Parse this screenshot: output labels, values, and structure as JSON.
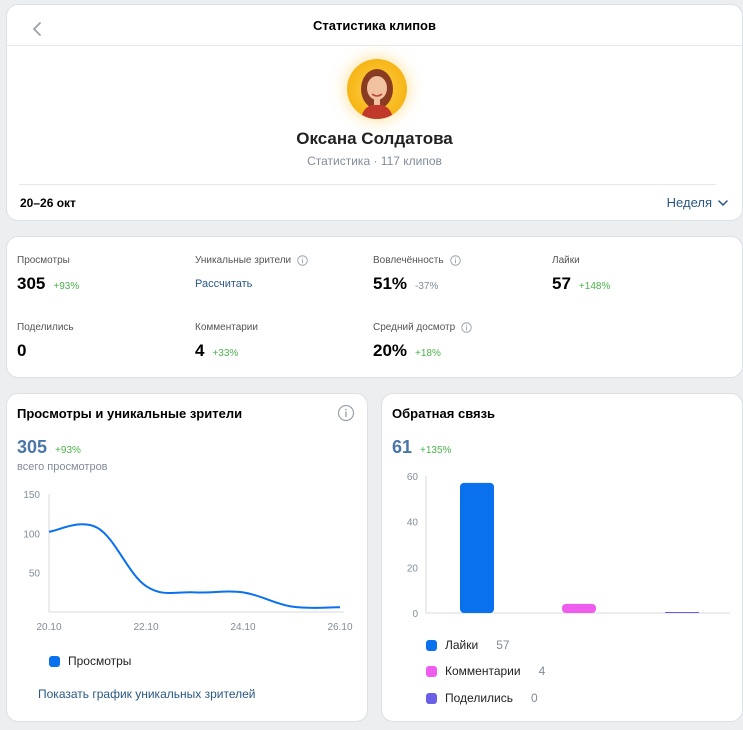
{
  "header": {
    "title": "Статистика клипов",
    "profile_name": "Оксана Солдатова",
    "profile_subtitle": "Статистика · 117 клипов",
    "date_range": "20–26 окт",
    "period": "Неделя"
  },
  "stats": {
    "views": {
      "label": "Просмотры",
      "value": "305",
      "delta": "+93%"
    },
    "unique": {
      "label": "Уникальные зрители",
      "action": "Рассчитать"
    },
    "engagement": {
      "label": "Вовлечённость",
      "value": "51%",
      "delta": "-37%"
    },
    "likes": {
      "label": "Лайки",
      "value": "57",
      "delta": "+148%"
    },
    "shares": {
      "label": "Поделились",
      "value": "0"
    },
    "comments": {
      "label": "Комментарии",
      "value": "4",
      "delta": "+33%"
    },
    "watch": {
      "label": "Средний досмотр",
      "value": "20%",
      "delta": "+18%"
    }
  },
  "views_card": {
    "title": "Просмотры и уникальные зрители",
    "total": "305",
    "delta": "+93%",
    "caption": "всего просмотров",
    "legend": "Просмотры",
    "show_link": "Показать график уникальных зрителей"
  },
  "feedback_card": {
    "title": "Обратная связь",
    "total": "61",
    "delta": "+135%",
    "legend": [
      {
        "label": "Лайки",
        "value": "57"
      },
      {
        "label": "Комментарии",
        "value": "4"
      },
      {
        "label": "Поделились",
        "value": "0"
      }
    ]
  },
  "colors": {
    "views": "#0a71ee",
    "likes": "#0a71ee",
    "comments": "#ee5dee",
    "shares": "#6b5fe8"
  },
  "chart_data": [
    {
      "type": "line",
      "title": "Просмотры и уникальные зрители",
      "x": [
        "20.10",
        "21.10",
        "22.10",
        "23.10",
        "24.10",
        "25.10",
        "26.10"
      ],
      "series": [
        {
          "name": "Просмотры",
          "values": [
            102,
            107,
            33,
            25,
            25,
            7,
            6
          ]
        }
      ],
      "ylim": [
        0,
        150
      ],
      "yticks": [
        "150",
        "100",
        "50"
      ],
      "xticks": [
        "20.10",
        "22.10",
        "24.10",
        "26.10"
      ]
    },
    {
      "type": "bar",
      "title": "Обратная связь",
      "categories": [
        "Лайки",
        "Комментарии",
        "Поделились"
      ],
      "values": [
        57,
        4,
        0
      ],
      "ylim": [
        0,
        60
      ],
      "yticks": [
        "60",
        "40",
        "20",
        "0"
      ]
    }
  ]
}
